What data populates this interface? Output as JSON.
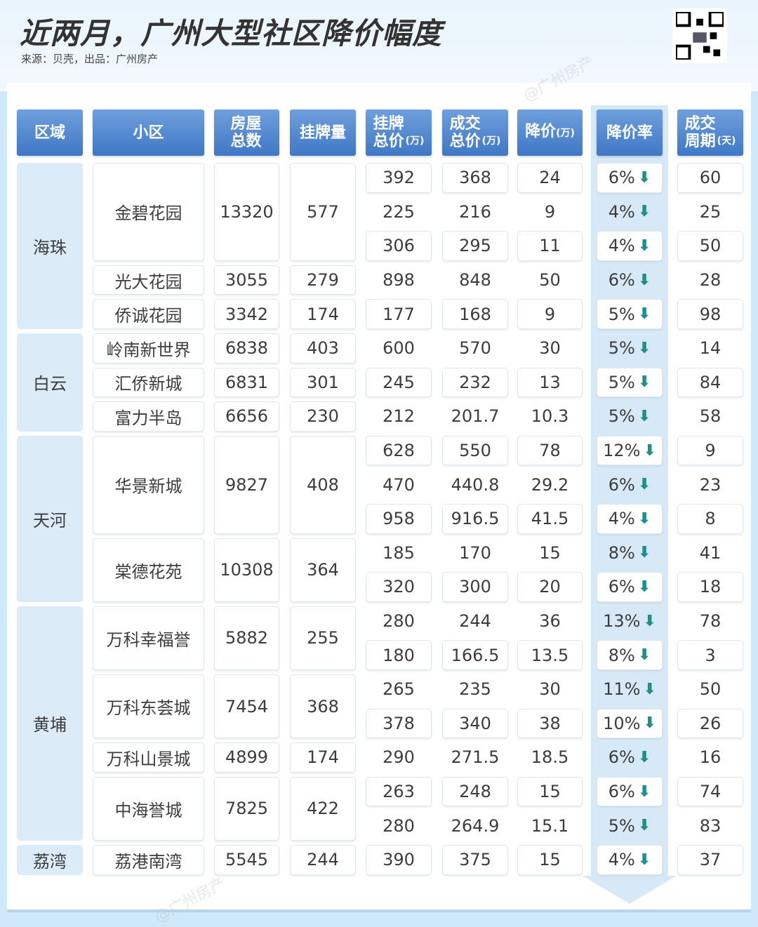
{
  "header": {
    "title": "近两月，广州大型社区降价幅度",
    "subtitle": "来源：贝壳，出品：广州房产",
    "watermark": "@广州房产"
  },
  "colors": {
    "header": "#4a82cc",
    "band": "#d7e9f6",
    "arrow": "#1f8f8a",
    "district": "#dcebf8"
  },
  "chart_data": {
    "type": "table",
    "columns": [
      {
        "key": "district",
        "label": "区域",
        "unit": ""
      },
      {
        "key": "community",
        "label": "小区",
        "unit": ""
      },
      {
        "key": "houses",
        "label": "房屋总数",
        "line1": "房屋",
        "line2": "总数",
        "unit": ""
      },
      {
        "key": "listings",
        "label": "挂牌量",
        "unit": ""
      },
      {
        "key": "list_price",
        "label": "挂牌总价",
        "line1": "挂牌",
        "line2": "总价",
        "unit": "(万)"
      },
      {
        "key": "deal_price",
        "label": "成交总价",
        "line1": "成交",
        "line2": "总价",
        "unit": "(万)"
      },
      {
        "key": "cut",
        "label": "降价",
        "unit": "(万)"
      },
      {
        "key": "cut_rate",
        "label": "降价率",
        "unit": ""
      },
      {
        "key": "cycle",
        "label": "成交周期",
        "line1": "成交",
        "line2": "周期",
        "unit": "(天)"
      }
    ],
    "districts": [
      {
        "name": "海珠",
        "communities": [
          {
            "name": "金碧花园",
            "houses": 13320,
            "listings": 577,
            "deals": [
              [
                392,
                368,
                24,
                "6%",
                60
              ],
              [
                225,
                216,
                9,
                "4%",
                25
              ],
              [
                306,
                295,
                11,
                "4%",
                50
              ]
            ]
          },
          {
            "name": "光大花园",
            "houses": 3055,
            "listings": 279,
            "deals": [
              [
                898,
                848,
                50,
                "6%",
                28
              ]
            ]
          },
          {
            "name": "侨诚花园",
            "houses": 3342,
            "listings": 174,
            "deals": [
              [
                177,
                168,
                9,
                "5%",
                98
              ]
            ]
          }
        ]
      },
      {
        "name": "白云",
        "communities": [
          {
            "name": "岭南新世界",
            "houses": 6838,
            "listings": 403,
            "deals": [
              [
                600,
                570,
                30,
                "5%",
                14
              ]
            ]
          },
          {
            "name": "汇侨新城",
            "houses": 6831,
            "listings": 301,
            "deals": [
              [
                245,
                232,
                13,
                "5%",
                84
              ]
            ]
          },
          {
            "name": "富力半岛",
            "houses": 6656,
            "listings": 230,
            "deals": [
              [
                212,
                201.7,
                10.3,
                "5%",
                58
              ]
            ]
          }
        ]
      },
      {
        "name": "天河",
        "communities": [
          {
            "name": "华景新城",
            "houses": 9827,
            "listings": 408,
            "deals": [
              [
                628,
                550,
                78,
                "12%",
                9
              ],
              [
                470,
                440.8,
                29.2,
                "6%",
                23
              ],
              [
                958,
                916.5,
                41.5,
                "4%",
                8
              ]
            ]
          },
          {
            "name": "棠德花苑",
            "houses": 10308,
            "listings": 364,
            "deals": [
              [
                185,
                170,
                15,
                "8%",
                41
              ],
              [
                320,
                300,
                20,
                "6%",
                18
              ]
            ]
          }
        ]
      },
      {
        "name": "黄埔",
        "communities": [
          {
            "name": "万科幸福誉",
            "houses": 5882,
            "listings": 255,
            "deals": [
              [
                280,
                244,
                36,
                "13%",
                78
              ],
              [
                180,
                166.5,
                13.5,
                "8%",
                3
              ]
            ]
          },
          {
            "name": "万科东荟城",
            "houses": 7454,
            "listings": 368,
            "deals": [
              [
                265,
                235,
                30,
                "11%",
                50
              ],
              [
                378,
                340,
                38,
                "10%",
                26
              ]
            ]
          },
          {
            "name": "万科山景城",
            "houses": 4899,
            "listings": 174,
            "deals": [
              [
                290,
                271.5,
                18.5,
                "6%",
                16
              ]
            ]
          },
          {
            "name": "中海誉城",
            "houses": 7825,
            "listings": 422,
            "deals": [
              [
                263,
                248,
                15,
                "6%",
                74
              ],
              [
                280,
                264.9,
                15.1,
                "5%",
                83
              ]
            ]
          }
        ]
      },
      {
        "name": "荔湾",
        "communities": [
          {
            "name": "荔港南湾",
            "houses": 5545,
            "listings": 244,
            "deals": [
              [
                390,
                375,
                15,
                "4%",
                37
              ]
            ]
          }
        ]
      }
    ]
  }
}
